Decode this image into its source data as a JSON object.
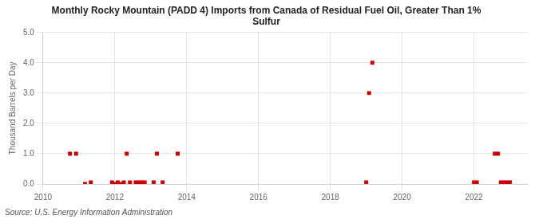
{
  "chart_data": {
    "type": "scatter",
    "title": "Monthly Rocky Mountain (PADD 4) Imports from Canada of Residual Fuel Oil, Greater Than 1%\nSulfur",
    "ylabel": "Thousand Barrels per Day",
    "annotation": "Source: U.S. Energy Information Administration",
    "x": [
      2010.75,
      2010.92,
      2011.17,
      2011.33,
      2011.92,
      2012.0,
      2012.08,
      2012.17,
      2012.25,
      2012.33,
      2012.42,
      2012.58,
      2012.67,
      2012.75,
      2012.83,
      2013.08,
      2013.17,
      2013.33,
      2013.75,
      2019.0,
      2019.08,
      2019.17,
      2022.0,
      2022.08,
      2022.58,
      2022.67,
      2022.75,
      2022.83,
      2022.92,
      2023.0
    ],
    "values": [
      1.0,
      1.0,
      0.0,
      0.05,
      0.05,
      0.0,
      0.05,
      0.0,
      0.05,
      1.0,
      0.05,
      0.05,
      0.05,
      0.05,
      0.05,
      0.05,
      1.0,
      0.05,
      1.0,
      0.05,
      3.0,
      4.0,
      0.05,
      0.05,
      1.0,
      1.0,
      0.05,
      0.05,
      0.05,
      0.05
    ],
    "color": "#cc0000",
    "marker": "square",
    "xlim": [
      2010,
      2023.5
    ],
    "ylim": [
      0.0,
      5.0
    ],
    "xticks": [
      2010,
      2012,
      2014,
      2016,
      2018,
      2020,
      2022
    ],
    "yticks": [
      {
        "value": 0.0,
        "label": "0.0"
      },
      {
        "value": 1.0,
        "label": "1.0"
      },
      {
        "value": 2.0,
        "label": "2.0"
      },
      {
        "value": 3.0,
        "label": "3.0"
      },
      {
        "value": 4.0,
        "label": "4.0"
      },
      {
        "value": 5.0,
        "label": "5.0"
      }
    ],
    "grid": true
  }
}
